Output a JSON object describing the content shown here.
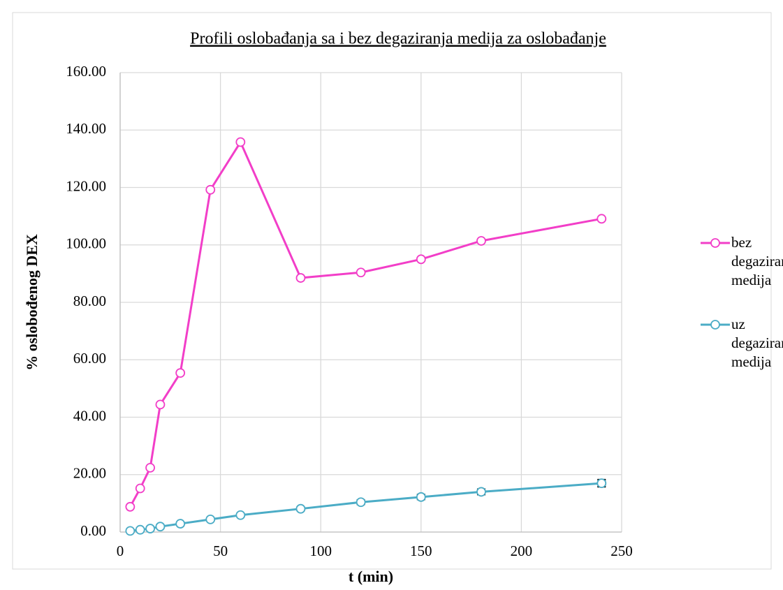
{
  "chart_data": {
    "type": "line",
    "title": "Profili oslobađanja sa i bez degaziranja medija za oslobađanje",
    "x_label": "t (min)",
    "y_label": "% oslobođenog DEX",
    "x": [
      5,
      10,
      15,
      20,
      30,
      45,
      60,
      90,
      120,
      150,
      180,
      240
    ],
    "series": [
      {
        "name": "bez degaziranja medija",
        "color": "#f23ec8",
        "values": [
          8.8,
          15.2,
          22.4,
          44.4,
          55.4,
          119.2,
          135.8,
          88.5,
          90.4,
          95.0,
          101.4,
          109.1
        ]
      },
      {
        "name": "uz degaziranje medija",
        "color": "#4bacc6",
        "values": [
          0.4,
          0.8,
          1.2,
          1.9,
          2.9,
          4.4,
          5.9,
          8.1,
          10.4,
          12.2,
          14.0,
          17.0
        ],
        "errors": [
          0.1,
          0.1,
          0.1,
          0.2,
          0.2,
          0.3,
          0.4,
          0.6,
          0.7,
          0.8,
          0.9,
          1.2
        ]
      }
    ],
    "xlim": [
      0,
      250
    ],
    "xticks": [
      0,
      50,
      100,
      150,
      200,
      250
    ],
    "ylim": [
      0,
      160
    ],
    "yticks": [
      {
        "value": 0,
        "label": "0.00"
      },
      {
        "value": 20,
        "label": "20.00"
      },
      {
        "value": 40,
        "label": "40.00"
      },
      {
        "value": 60,
        "label": "60.00"
      },
      {
        "value": 80,
        "label": "80.00"
      },
      {
        "value": 100,
        "label": "100.00"
      },
      {
        "value": 120,
        "label": "120.00"
      },
      {
        "value": 140,
        "label": "140.00"
      },
      {
        "value": 160,
        "label": "160.00"
      }
    ],
    "grid": true,
    "legend": "right"
  }
}
